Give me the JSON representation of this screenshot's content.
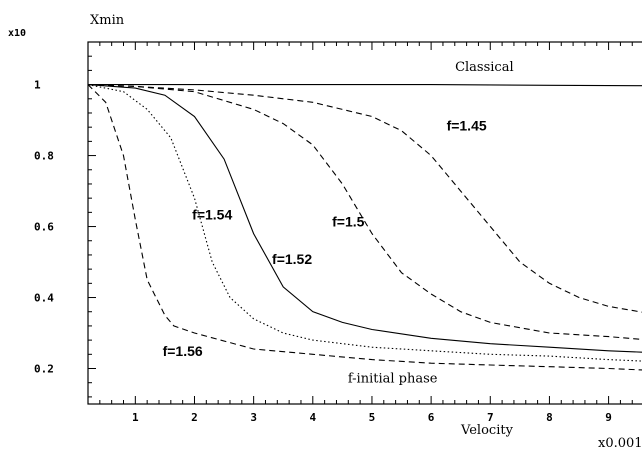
{
  "chart_data": {
    "type": "line",
    "ylabel": "Xmin",
    "y_multiplier": "x10",
    "xlabel": "Velocity",
    "x_multiplier": "x0.001",
    "xlim": [
      0.2,
      9.7
    ],
    "ylim": [
      0.1,
      1.12
    ],
    "x_ticks": [
      1,
      2,
      3,
      4,
      5,
      6,
      7,
      8,
      9
    ],
    "y_ticks": [
      0.2,
      0.4,
      0.6,
      0.8,
      1
    ],
    "y_tick_labels": [
      "0.2",
      "0.4",
      "0.6",
      "0.8",
      "1"
    ],
    "grid": false,
    "series": [
      {
        "name": "Classical",
        "style": "solid",
        "x": [
          0.2,
          2,
          4,
          6,
          8,
          9.7
        ],
        "y": [
          1.0,
          1.0,
          1.0,
          1.0,
          0.998,
          0.997
        ]
      },
      {
        "name": "f=1.45",
        "style": "dashed",
        "x": [
          0.2,
          1,
          2,
          3,
          4,
          5,
          5.5,
          6,
          6.5,
          7,
          7.5,
          8,
          8.5,
          9,
          9.7
        ],
        "y": [
          1.0,
          0.995,
          0.985,
          0.97,
          0.95,
          0.91,
          0.87,
          0.8,
          0.7,
          0.6,
          0.5,
          0.44,
          0.4,
          0.375,
          0.355
        ]
      },
      {
        "name": "f=1.5",
        "style": "dashed",
        "x": [
          0.2,
          1,
          2,
          3,
          3.5,
          4,
          4.5,
          5,
          5.5,
          6,
          6.5,
          7,
          8,
          9,
          9.7
        ],
        "y": [
          1.0,
          0.995,
          0.98,
          0.93,
          0.89,
          0.83,
          0.72,
          0.58,
          0.47,
          0.41,
          0.36,
          0.33,
          0.3,
          0.29,
          0.28
        ]
      },
      {
        "name": "f=1.52",
        "style": "solid",
        "x": [
          0.2,
          1,
          1.5,
          2,
          2.5,
          3,
          3.5,
          4,
          4.5,
          5,
          6,
          7,
          8,
          9,
          9.7
        ],
        "y": [
          1.0,
          0.99,
          0.97,
          0.91,
          0.79,
          0.58,
          0.43,
          0.36,
          0.33,
          0.31,
          0.285,
          0.27,
          0.26,
          0.25,
          0.245
        ]
      },
      {
        "name": "f=1.54",
        "style": "dotted",
        "x": [
          0.2,
          0.8,
          1.2,
          1.6,
          2,
          2.3,
          2.6,
          3,
          3.5,
          4,
          5,
          6,
          7,
          8,
          9,
          9.7
        ],
        "y": [
          1.0,
          0.98,
          0.93,
          0.85,
          0.68,
          0.5,
          0.4,
          0.34,
          0.3,
          0.28,
          0.26,
          0.25,
          0.24,
          0.235,
          0.225,
          0.22
        ]
      },
      {
        "name": "f=1.56",
        "style": "dashed",
        "x": [
          0.2,
          0.5,
          0.8,
          1.0,
          1.2,
          1.5,
          1.65,
          2,
          3,
          4,
          5,
          6,
          7,
          8,
          9,
          9.7
        ],
        "y": [
          1.0,
          0.95,
          0.8,
          0.62,
          0.45,
          0.35,
          0.32,
          0.3,
          0.255,
          0.24,
          0.225,
          0.215,
          0.21,
          0.205,
          0.2,
          0.195
        ]
      }
    ],
    "annotations": [
      {
        "text": "Classical",
        "x": 6.9,
        "y": 1.038
      },
      {
        "text": "f=1.45",
        "x": 6.6,
        "y": 0.87
      },
      {
        "text": "f=1.5",
        "x": 4.6,
        "y": 0.6
      },
      {
        "text": "f=1.52",
        "x": 3.65,
        "y": 0.495
      },
      {
        "text": "f=1.54",
        "x": 2.3,
        "y": 0.62
      },
      {
        "text": "f=1.56",
        "x": 1.8,
        "y": 0.235
      },
      {
        "text": "f-initial phase",
        "x": 5.35,
        "y": 0.16
      }
    ]
  }
}
